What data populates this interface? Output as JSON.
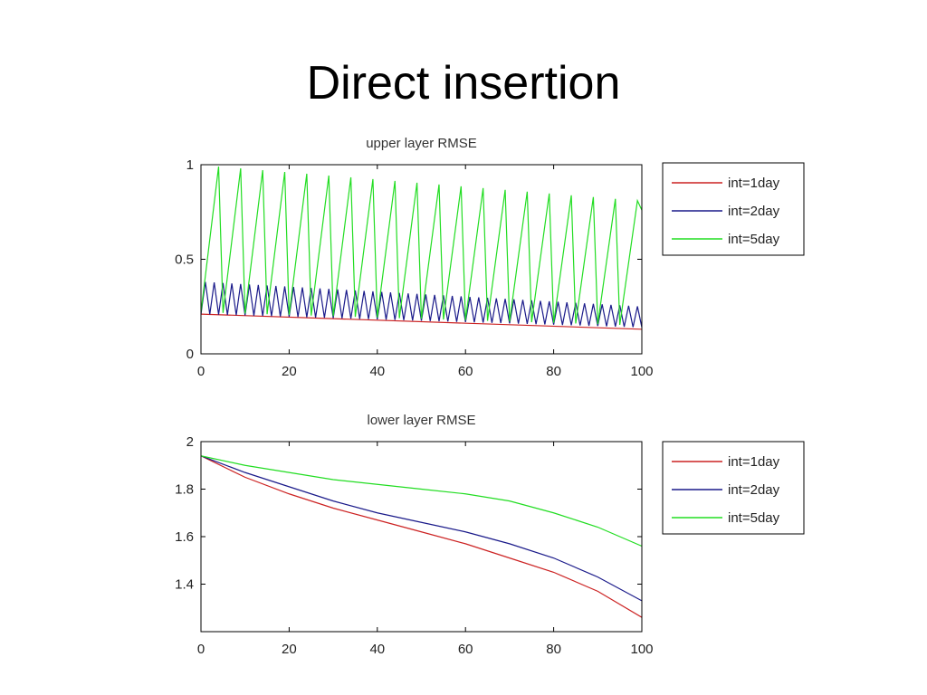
{
  "slide": {
    "title": "Direct insertion"
  },
  "chart_data": [
    {
      "type": "line",
      "title": "upper layer RMSE",
      "xlim": [
        0,
        100
      ],
      "ylim": [
        0,
        1
      ],
      "xticks": [
        0,
        20,
        40,
        60,
        80,
        100
      ],
      "yticks": [
        0,
        0.5,
        1
      ],
      "xtick_labels": [
        "0",
        "20",
        "40",
        "60",
        "80",
        "100"
      ],
      "ytick_labels": [
        "0",
        "0.5",
        "1"
      ],
      "grid": false,
      "legend_placement": "outside-right-top",
      "series": [
        {
          "name": "int=1day",
          "color": "#cc2222",
          "pattern": "linear",
          "start": 0.21,
          "end": 0.13,
          "x": [
            0,
            100
          ]
        },
        {
          "name": "int=2day",
          "color": "#1a1a8a",
          "pattern": "sawtooth",
          "period": 2,
          "peaks_at": [
            1,
            100
          ],
          "peaks": [
            0.38,
            0.25
          ],
          "troughs_at": [
            0,
            100
          ],
          "troughs": [
            0.21,
            0.14
          ]
        },
        {
          "name": "int=5day",
          "color": "#22dd22",
          "pattern": "sawtooth",
          "period": 5,
          "peaks_at": [
            4,
            99
          ],
          "peaks": [
            0.99,
            0.81
          ],
          "troughs_at": [
            0,
            100
          ],
          "troughs": [
            0.22,
            0.15
          ],
          "end_value": 0.76
        }
      ]
    },
    {
      "type": "line",
      "title": "lower layer RMSE",
      "xlim": [
        0,
        100
      ],
      "ylim": [
        1.2,
        2
      ],
      "xticks": [
        0,
        20,
        40,
        60,
        80,
        100
      ],
      "yticks": [
        1.4,
        1.6,
        1.8,
        2
      ],
      "xtick_labels": [
        "0",
        "20",
        "40",
        "60",
        "80",
        "100"
      ],
      "ytick_labels": [
        "1.4",
        "1.6",
        "1.8",
        "2"
      ],
      "grid": false,
      "legend_placement": "outside-right-top",
      "series": [
        {
          "name": "int=1day",
          "color": "#cc2222",
          "x": [
            0,
            10,
            20,
            30,
            40,
            50,
            60,
            70,
            80,
            90,
            100
          ],
          "y": [
            1.94,
            1.85,
            1.78,
            1.72,
            1.67,
            1.62,
            1.57,
            1.51,
            1.45,
            1.37,
            1.26
          ]
        },
        {
          "name": "int=2day",
          "color": "#1a1a8a",
          "x": [
            0,
            10,
            20,
            30,
            40,
            50,
            60,
            70,
            80,
            90,
            100
          ],
          "y": [
            1.94,
            1.87,
            1.81,
            1.75,
            1.7,
            1.66,
            1.62,
            1.57,
            1.51,
            1.43,
            1.33
          ]
        },
        {
          "name": "int=5day",
          "color": "#22dd22",
          "x": [
            0,
            10,
            20,
            30,
            40,
            50,
            60,
            70,
            80,
            90,
            100
          ],
          "y": [
            1.94,
            1.9,
            1.87,
            1.84,
            1.82,
            1.8,
            1.78,
            1.75,
            1.7,
            1.64,
            1.56
          ]
        }
      ]
    }
  ]
}
